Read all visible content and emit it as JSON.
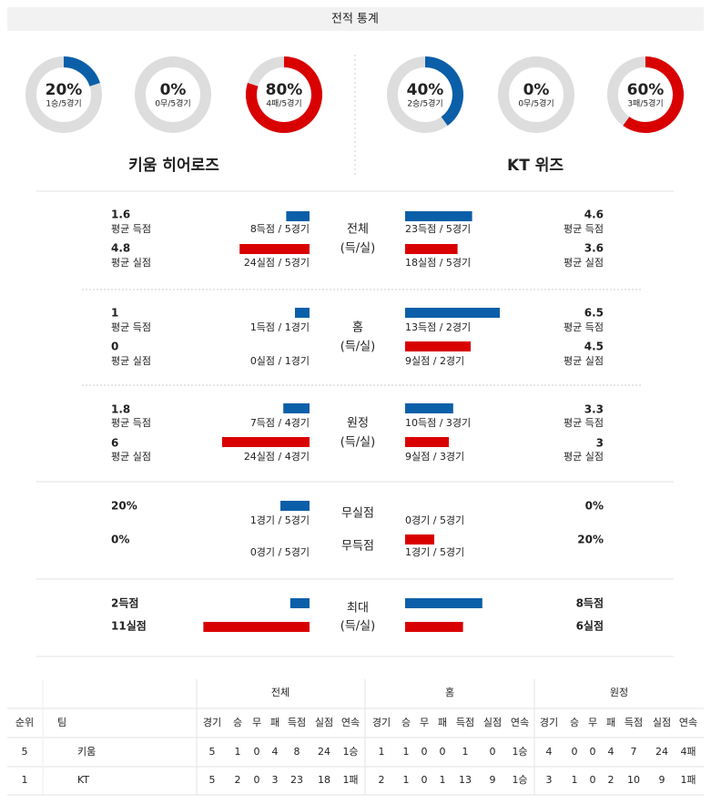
{
  "header": {
    "title": "전적 통계"
  },
  "teams": [
    {
      "name": "키움 히어로즈",
      "donuts": [
        {
          "value": 20,
          "label": "20%",
          "sub": "1승/5경기"
        },
        {
          "value": 0,
          "label": "0%",
          "sub": "0무/5경기"
        },
        {
          "value": 80,
          "label": "80%",
          "sub": "4패/5경기"
        }
      ]
    },
    {
      "name": "KT 위즈",
      "donuts": [
        {
          "value": 40,
          "label": "40%",
          "sub": "2승/5경기"
        },
        {
          "value": 0,
          "label": "0%",
          "sub": "0무/5경기"
        },
        {
          "value": 60,
          "label": "60%",
          "sub": "3패/5경기"
        }
      ]
    }
  ],
  "sections": [
    {
      "label": [
        "전체",
        "(득/실)"
      ],
      "rows": [
        {
          "left": {
            "value": 1.6,
            "caption": "평균 득점",
            "bar": "8득점 / 5경기"
          },
          "right": {
            "value": 4.6,
            "caption": "평균 득점",
            "bar": "23득점 / 5경기"
          }
        },
        {
          "left": {
            "value": 4.8,
            "caption": "평균 실점",
            "bar": "24실점 / 5경기"
          },
          "right": {
            "value": 3.6,
            "caption": "평균 실점",
            "bar": "18실점 / 5경기"
          }
        }
      ]
    },
    {
      "label": [
        "홈",
        "(득/실)"
      ],
      "rows": [
        {
          "left": {
            "value": 1,
            "caption": "평균 득점",
            "bar": "1득점 / 1경기"
          },
          "right": {
            "value": 6.5,
            "caption": "평균 득점",
            "bar": "13득점 / 2경기"
          }
        },
        {
          "left": {
            "value": 0,
            "caption": "평균 실점",
            "bar": "0실점 / 1경기"
          },
          "right": {
            "value": 4.5,
            "caption": "평균 실점",
            "bar": "9실점 / 2경기"
          }
        }
      ]
    },
    {
      "label": [
        "원정",
        "(득/실)"
      ],
      "rows": [
        {
          "left": {
            "value": 1.8,
            "caption": "평균 득점",
            "bar": "7득점 / 4경기"
          },
          "right": {
            "value": 3.3,
            "caption": "평균 득점",
            "bar": "10득점 / 3경기"
          }
        },
        {
          "left": {
            "value": 6,
            "caption": "평균 실점",
            "bar": "24실점 / 4경기"
          },
          "right": {
            "value": 3,
            "caption": "평균 실점",
            "bar": "9실점 / 3경기"
          }
        }
      ]
    },
    {
      "rows": [
        {
          "label": "무실점",
          "left": {
            "value": 20,
            "value_label": "20%",
            "bar": "1경기 / 5경기"
          },
          "right": {
            "value": 0,
            "value_label": "0%",
            "bar": "0경기 / 5경기"
          }
        },
        {
          "label": "무득점",
          "left": {
            "value": 0,
            "value_label": "0%",
            "bar": "0경기 / 5경기"
          },
          "right": {
            "value": 20,
            "value_label": "20%",
            "bar": "1경기 / 5경기"
          }
        }
      ]
    },
    {
      "label": [
        "최대",
        "(득/실)"
      ],
      "rows": [
        {
          "left": {
            "value": 2,
            "value_label": "2득점"
          },
          "right": {
            "value": 8,
            "value_label": "8득점"
          }
        },
        {
          "left": {
            "value": 11,
            "value_label": "11실점"
          },
          "right": {
            "value": 6,
            "value_label": "6실점"
          }
        }
      ]
    }
  ],
  "table": {
    "groups": [
      "전체",
      "홈",
      "원정"
    ],
    "columns": [
      "순위",
      "팀",
      "경기",
      "승",
      "무",
      "패",
      "득점",
      "실점",
      "연속",
      "경기",
      "승",
      "무",
      "패",
      "득점",
      "실점",
      "연속",
      "경기",
      "승",
      "무",
      "패",
      "득점",
      "실점",
      "연속"
    ],
    "rows": [
      [
        5,
        "키움",
        5,
        1,
        0,
        4,
        8,
        24,
        "1승",
        1,
        1,
        0,
        0,
        1,
        0,
        "1승",
        4,
        0,
        0,
        4,
        7,
        24,
        "4패"
      ],
      [
        1,
        "KT",
        5,
        2,
        0,
        3,
        23,
        18,
        "1패",
        2,
        1,
        0,
        1,
        13,
        9,
        "1승",
        3,
        1,
        0,
        2,
        10,
        9,
        "1패"
      ]
    ]
  }
}
